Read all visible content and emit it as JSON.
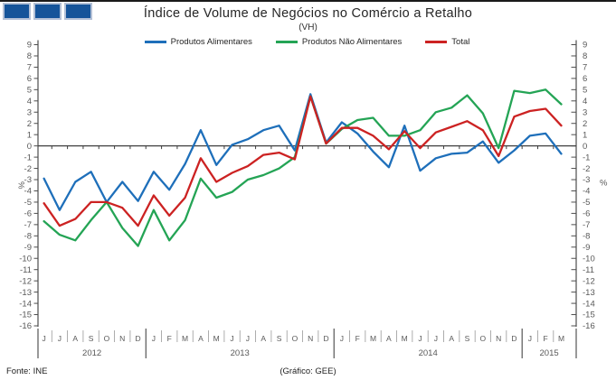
{
  "header": {
    "title": "Índice de Volume de Negócios no Comércio a Retalho",
    "subtitle": "(VH)"
  },
  "logo": {
    "square_count": 3,
    "fill": "#15549a",
    "border": "#b3c0d6"
  },
  "footer": {
    "source": "Fonte: INE",
    "credit": "(Gráfico: GEE)"
  },
  "chart_data": {
    "type": "line",
    "title": "Índice de Volume de Negócios no Comércio a Retalho",
    "subtitle": "(VH)",
    "ylabel_left": "%",
    "ylabel_right": "%",
    "ylim": [
      -16,
      9
    ],
    "ytick_step": 1,
    "grid": false,
    "legend_position": "top",
    "x_labels": [
      "J",
      "J",
      "A",
      "S",
      "O",
      "N",
      "D",
      "J",
      "F",
      "M",
      "A",
      "M",
      "J",
      "J",
      "A",
      "S",
      "O",
      "N",
      "D",
      "J",
      "F",
      "M",
      "A",
      "M",
      "J",
      "J",
      "A",
      "S",
      "O",
      "N",
      "D",
      "J",
      "F",
      "M"
    ],
    "year_groups": [
      {
        "label": "2012",
        "months": 7
      },
      {
        "label": "2013",
        "months": 12
      },
      {
        "label": "2014",
        "months": 12
      },
      {
        "label": "2015",
        "months": 3
      }
    ],
    "series": [
      {
        "name": "Produtos Alimentares",
        "color": "#1e6fba",
        "values": [
          -2.9,
          -5.7,
          -3.2,
          -2.3,
          -5.0,
          -3.2,
          -4.9,
          -2.3,
          -3.9,
          -1.6,
          1.4,
          -1.7,
          0.1,
          0.6,
          1.4,
          1.8,
          -0.4,
          4.6,
          0.3,
          2.1,
          1.1,
          -0.5,
          -1.9,
          1.8,
          -2.2,
          -1.1,
          -0.7,
          -0.6,
          0.4,
          -1.5,
          -0.4,
          0.9,
          1.1,
          -0.7
        ]
      },
      {
        "name": "Produtos Não Alimentares",
        "color": "#24a455",
        "values": [
          -6.7,
          -7.9,
          -8.4,
          -6.6,
          -5.0,
          -7.3,
          -8.9,
          -5.7,
          -8.4,
          -6.6,
          -2.9,
          -4.6,
          -4.1,
          -3.0,
          -2.6,
          -2.0,
          -1.0,
          4.4,
          0.2,
          1.5,
          2.3,
          2.5,
          0.9,
          0.9,
          1.4,
          3.0,
          3.4,
          4.5,
          2.9,
          -0.2,
          4.9,
          4.7,
          5.0,
          3.7
        ]
      },
      {
        "name": "Total",
        "color": "#cc2222",
        "values": [
          -5.1,
          -7.1,
          -6.5,
          -5.0,
          -5.0,
          -5.5,
          -7.1,
          -4.4,
          -6.2,
          -4.6,
          -1.1,
          -3.2,
          -2.4,
          -1.8,
          -0.8,
          -0.6,
          -1.2,
          4.4,
          0.2,
          1.6,
          1.6,
          0.9,
          -0.3,
          1.3,
          -0.2,
          1.2,
          1.7,
          2.2,
          1.4,
          -0.9,
          2.6,
          3.1,
          3.3,
          1.8
        ]
      }
    ],
    "axis_color": "#4d4d4d",
    "tick_label_color": "#595959"
  }
}
